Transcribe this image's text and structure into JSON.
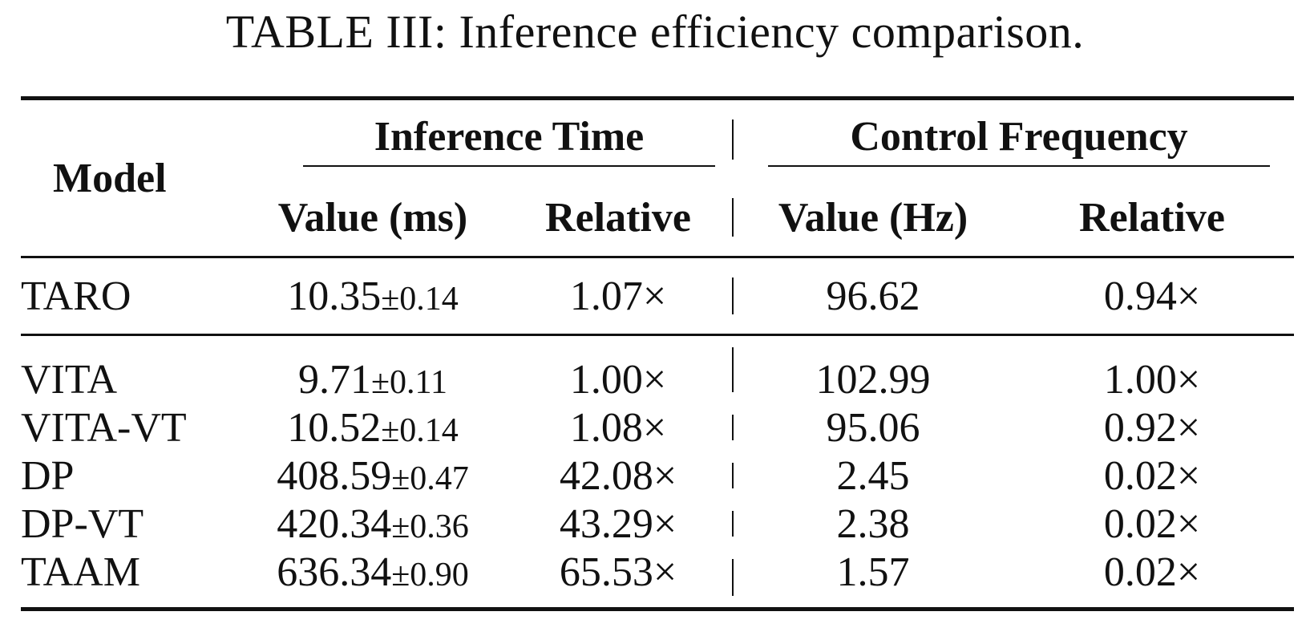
{
  "caption": "TABLE III: Inference efficiency comparison.",
  "table": {
    "model_header": "Model",
    "group_inference_time": "Inference Time",
    "group_control_frequency": "Control Frequency",
    "sub_value_ms": "Value (ms)",
    "sub_relative_1": "Relative",
    "sub_value_hz": "Value (Hz)",
    "sub_relative_2": "Relative",
    "taro": {
      "model": "TARO",
      "time_mean": "10.35",
      "time_std": "±0.14",
      "time_rel": "1.07×",
      "freq": "96.62",
      "freq_rel": "0.94×"
    },
    "rows": [
      {
        "model": "VITA",
        "time_mean": "9.71",
        "time_std": "±0.11",
        "time_rel": "1.00×",
        "freq": "102.99",
        "freq_rel": "1.00×"
      },
      {
        "model": "VITA-VT",
        "time_mean": "10.52",
        "time_std": "±0.14",
        "time_rel": "1.08×",
        "freq": "95.06",
        "freq_rel": "0.92×"
      },
      {
        "model": "DP",
        "time_mean": "408.59",
        "time_std": "±0.47",
        "time_rel": "42.08×",
        "freq": "2.45",
        "freq_rel": "0.02×"
      },
      {
        "model": "DP-VT",
        "time_mean": "420.34",
        "time_std": "±0.36",
        "time_rel": "43.29×",
        "freq": "2.38",
        "freq_rel": "0.02×"
      },
      {
        "model": "TAAM",
        "time_mean": "636.34",
        "time_std": "±0.90",
        "time_rel": "65.53×",
        "freq": "1.57",
        "freq_rel": "0.02×"
      }
    ]
  }
}
